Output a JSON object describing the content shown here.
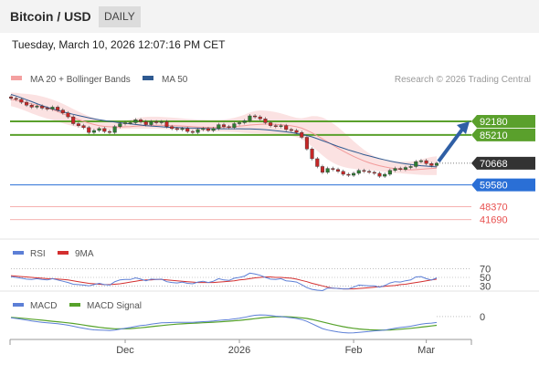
{
  "header": {
    "title": "Bitcoin / USD",
    "period_badge": "DAILY"
  },
  "timestamp": "Tuesday, March 10, 2026 12:07:16 PM CET",
  "legend": {
    "items": [
      {
        "label": "MA 20 + Bollinger Bands",
        "color": "#f4a0a0"
      },
      {
        "label": "MA 50",
        "color": "#2f5a91"
      }
    ],
    "copyright": "Research © 2026 Trading Central"
  },
  "colors": {
    "resistance": "#5aa02c",
    "support": "#2a6fd6",
    "target": "#e8504f",
    "current": "#333333",
    "arrow": "#2f5fa5",
    "up_candle": "#2e7d32",
    "down_candle": "#c62828",
    "rsi": "#5c7fd6",
    "rsi_ma": "#d32f2f",
    "macd": "#5c7fd6",
    "macd_signal": "#56a22a"
  },
  "chart_data": [
    {
      "type": "line",
      "panel": "price",
      "ylim": [
        35000,
        110000
      ],
      "x_ticks": [
        "Dec",
        "2026",
        "Feb",
        "Mar"
      ],
      "levels": [
        {
          "value": 92180,
          "label": "92180",
          "kind": "resistance"
        },
        {
          "value": 85210,
          "label": "85210",
          "kind": "resistance"
        },
        {
          "value": 70668,
          "label": "70668",
          "kind": "current"
        },
        {
          "value": 59580,
          "label": "59580",
          "kind": "support"
        },
        {
          "value": 48370,
          "label": "48370",
          "kind": "target"
        },
        {
          "value": 41690,
          "label": "41690",
          "kind": "target"
        }
      ],
      "close": [
        104000,
        103500,
        102000,
        100500,
        99500,
        100000,
        99000,
        98500,
        99500,
        98000,
        96500,
        94500,
        91000,
        90000,
        89000,
        86500,
        87500,
        88500,
        87000,
        86500,
        89500,
        91000,
        91500,
        91500,
        93000,
        92000,
        90500,
        92000,
        91500,
        92000,
        89500,
        88500,
        88000,
        88500,
        87000,
        86500,
        88000,
        88500,
        87500,
        88500,
        90500,
        89500,
        89000,
        91000,
        91500,
        92500,
        95000,
        94500,
        93500,
        91500,
        90000,
        89500,
        90000,
        88000,
        87500,
        86500,
        84000,
        78000,
        73000,
        69000,
        66000,
        68000,
        67500,
        66500,
        65000,
        64500,
        65500,
        67000,
        66500,
        66000,
        65500,
        64000,
        65000,
        67000,
        68000,
        67500,
        68500,
        69000,
        71500,
        72000,
        70500,
        69500,
        70668
      ],
      "series": [
        {
          "name": "MA 50",
          "values": [
            106000,
            105200,
            104300,
            103300,
            102300,
            101300,
            100300,
            99400,
            98600,
            97800,
            97100,
            96400,
            95800,
            95200,
            94600,
            94000,
            93500,
            93000,
            92600,
            92200,
            91800,
            91500,
            91200,
            90900,
            90600,
            90300,
            90000,
            89800,
            89600,
            89400,
            89200,
            89100,
            89000,
            88900,
            88800,
            88700,
            88700,
            88600,
            88500,
            88400,
            88400,
            88400,
            88400,
            88400,
            88400,
            88300,
            88300,
            88200,
            88100,
            87900,
            87700,
            87400,
            87100,
            86800,
            86400,
            86000,
            85500,
            84900,
            84200,
            83300,
            82300,
            81300,
            80300,
            79300,
            78400,
            77500,
            76700,
            75900,
            75100,
            74400,
            73700,
            73000,
            72400,
            71800,
            71300,
            70800,
            70400,
            70000,
            69700,
            69400,
            69200,
            69000,
            68800
          ]
        },
        {
          "name": "MA 20",
          "values": [
            103500,
            103000,
            102400,
            101800,
            101100,
            100500,
            99800,
            99000,
            98200,
            97200,
            96100,
            95100,
            94100,
            93100,
            92200,
            91300,
            90600,
            90000,
            89600,
            89400,
            89300,
            89300,
            89400,
            89500,
            89700,
            89900,
            90000,
            90100,
            90200,
            90200,
            90100,
            90000,
            89900,
            89800,
            89600,
            89400,
            89300,
            89200,
            89100,
            89100,
            89100,
            89200,
            89300,
            89500,
            89700,
            90000,
            90300,
            90500,
            90700,
            90800,
            90800,
            90700,
            90500,
            90200,
            89900,
            89400,
            88700,
            87600,
            86300,
            84800,
            83200,
            81600,
            80000,
            78400,
            76900,
            75500,
            74200,
            73000,
            71900,
            70900,
            70100,
            69400,
            68800,
            68300,
            67900,
            67600,
            67400,
            67300,
            67400,
            67600,
            67800,
            68000,
            68200
          ]
        },
        {
          "name": "BB Upper",
          "values": [
            107000,
            106800,
            106500,
            106300,
            106000,
            105600,
            105000,
            104300,
            103400,
            102400,
            101200,
            99900,
            98500,
            97200,
            96000,
            94900,
            93900,
            93100,
            92600,
            92300,
            92200,
            92300,
            92600,
            93100,
            93700,
            94200,
            94500,
            94600,
            94600,
            94500,
            94300,
            94100,
            93900,
            93700,
            93500,
            93300,
            93100,
            93000,
            92900,
            92900,
            92900,
            93100,
            93500,
            94000,
            94700,
            95600,
            96800,
            97500,
            97800,
            97700,
            97400,
            96900,
            96300,
            95500,
            94700,
            94000,
            93800,
            94300,
            94900,
            94800,
            94200,
            92900,
            91200,
            89200,
            86900,
            84500,
            82000,
            79700,
            77600,
            75800,
            74300,
            73200,
            72400,
            71900,
            71600,
            71400,
            71400,
            71500,
            71900,
            72600,
            73300,
            73900,
            74300
          ]
        },
        {
          "name": "BB Lower",
          "values": [
            100000,
            99300,
            98400,
            97400,
            96300,
            95300,
            94400,
            93600,
            92900,
            92100,
            91200,
            90400,
            89700,
            89100,
            88600,
            88200,
            87900,
            87700,
            87700,
            87800,
            88000,
            88200,
            88300,
            88400,
            88400,
            88400,
            88400,
            88400,
            88400,
            88300,
            88200,
            88000,
            87800,
            87600,
            87400,
            87300,
            87200,
            87100,
            87000,
            86900,
            86900,
            86900,
            86800,
            86700,
            86500,
            86300,
            86100,
            86000,
            85900,
            85800,
            85700,
            85600,
            85400,
            85100,
            84700,
            84100,
            83100,
            81400,
            79300,
            77000,
            74700,
            72600,
            71000,
            69700,
            68800,
            68200,
            67800,
            67500,
            67300,
            67100,
            66900,
            66600,
            66300,
            66000,
            65700,
            65500,
            65300,
            65100,
            64900,
            64700,
            64600,
            64600,
            64600
          ]
        }
      ]
    },
    {
      "type": "line",
      "panel": "rsi",
      "ylim": [
        20,
        80
      ],
      "y_ticks": [
        70,
        50,
        30
      ],
      "series": [
        {
          "name": "RSI",
          "values": [
            52,
            50,
            48,
            46,
            45,
            47,
            45,
            44,
            47,
            44,
            41,
            38,
            34,
            33,
            32,
            30,
            33,
            36,
            33,
            32,
            40,
            44,
            45,
            45,
            49,
            46,
            42,
            46,
            45,
            46,
            40,
            38,
            37,
            39,
            36,
            35,
            39,
            41,
            38,
            41,
            47,
            44,
            43,
            48,
            50,
            53,
            60,
            58,
            55,
            50,
            46,
            45,
            47,
            42,
            41,
            39,
            33,
            26,
            22,
            20,
            19,
            25,
            25,
            24,
            23,
            23,
            27,
            32,
            31,
            30,
            30,
            27,
            31,
            37,
            40,
            39,
            42,
            44,
            51,
            52,
            47,
            44,
            49
          ]
        },
        {
          "name": "9MA",
          "values": [
            54,
            53,
            52,
            51,
            50,
            49,
            48,
            47,
            47,
            46,
            45,
            44,
            42,
            40,
            38,
            36,
            35,
            34,
            33,
            33,
            34,
            35,
            37,
            39,
            41,
            43,
            44,
            44,
            45,
            45,
            44,
            43,
            42,
            41,
            40,
            39,
            38,
            38,
            38,
            38,
            39,
            40,
            41,
            42,
            44,
            45,
            47,
            49,
            50,
            51,
            51,
            50,
            50,
            49,
            48,
            46,
            43,
            40,
            36,
            33,
            30,
            27,
            25,
            24,
            23,
            23,
            23,
            24,
            25,
            26,
            27,
            28,
            29,
            30,
            31,
            33,
            34,
            36,
            38,
            40,
            42,
            44,
            46
          ]
        }
      ]
    },
    {
      "type": "line",
      "panel": "macd",
      "ylim": [
        -5000,
        1500
      ],
      "y_ticks": [
        0
      ],
      "series": [
        {
          "name": "MACD",
          "values": [
            -300,
            -450,
            -650,
            -850,
            -1050,
            -1200,
            -1350,
            -1500,
            -1600,
            -1700,
            -1850,
            -2050,
            -2300,
            -2550,
            -2800,
            -3000,
            -3150,
            -3200,
            -3250,
            -3300,
            -3200,
            -3000,
            -2800,
            -2600,
            -2350,
            -2150,
            -2000,
            -1800,
            -1650,
            -1500,
            -1450,
            -1400,
            -1380,
            -1350,
            -1350,
            -1380,
            -1300,
            -1200,
            -1150,
            -1050,
            -900,
            -800,
            -700,
            -550,
            -400,
            -200,
            100,
            300,
            400,
            350,
            250,
            100,
            0,
            -150,
            -300,
            -450,
            -700,
            -1150,
            -1700,
            -2300,
            -2850,
            -3200,
            -3450,
            -3650,
            -3800,
            -3900,
            -3850,
            -3750,
            -3650,
            -3550,
            -3400,
            -3300,
            -3200,
            -3000,
            -2800,
            -2600,
            -2450,
            -2300,
            -2050,
            -1800,
            -1650,
            -1550,
            -1400
          ]
        },
        {
          "name": "MACD Signal",
          "values": [
            -200,
            -280,
            -380,
            -500,
            -620,
            -740,
            -870,
            -1000,
            -1120,
            -1240,
            -1360,
            -1500,
            -1650,
            -1820,
            -2000,
            -2200,
            -2380,
            -2550,
            -2700,
            -2820,
            -2900,
            -2920,
            -2900,
            -2850,
            -2750,
            -2650,
            -2520,
            -2400,
            -2270,
            -2140,
            -2020,
            -1900,
            -1800,
            -1720,
            -1650,
            -1590,
            -1530,
            -1470,
            -1400,
            -1340,
            -1270,
            -1190,
            -1100,
            -1000,
            -900,
            -780,
            -640,
            -490,
            -340,
            -220,
            -120,
            -50,
            -20,
            -40,
            -100,
            -180,
            -290,
            -460,
            -680,
            -960,
            -1270,
            -1580,
            -1880,
            -2150,
            -2400,
            -2620,
            -2800,
            -2950,
            -3060,
            -3140,
            -3190,
            -3210,
            -3210,
            -3170,
            -3100,
            -3000,
            -2900,
            -2790,
            -2650,
            -2510,
            -2370,
            -2220,
            -2080
          ]
        }
      ]
    }
  ],
  "indicators": {
    "rsi_legend": [
      {
        "label": "RSI",
        "color": "#5c7fd6"
      },
      {
        "label": "9MA",
        "color": "#d32f2f"
      }
    ],
    "macd_legend": [
      {
        "label": "MACD",
        "color": "#5c7fd6"
      },
      {
        "label": "MACD Signal",
        "color": "#56a22a"
      }
    ]
  }
}
